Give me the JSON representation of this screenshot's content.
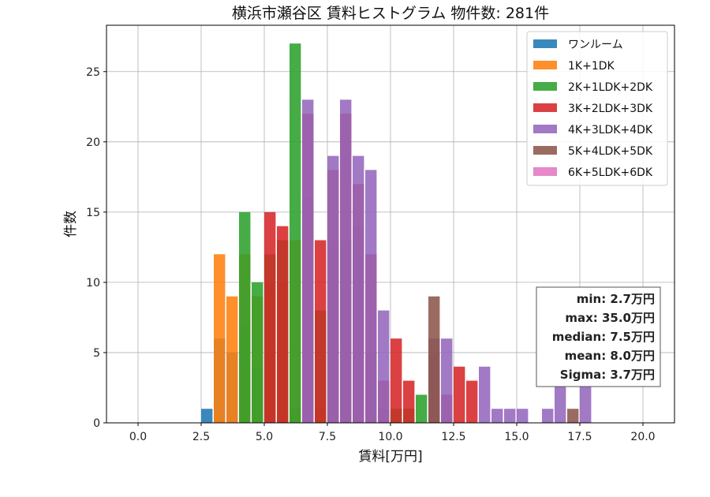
{
  "chart_data": {
    "type": "bar",
    "title": "横浜市瀬谷区 賃料ヒストグラム 物件数: 281件",
    "xlabel": "賃料[万円]",
    "ylabel": "件数",
    "xlim": [
      -1.25,
      21.25
    ],
    "ylim": [
      0,
      28.3
    ],
    "grid": true,
    "legend_position": "top-right",
    "xticks": [
      0.0,
      2.5,
      5.0,
      7.5,
      10.0,
      12.5,
      15.0,
      17.5,
      20.0
    ],
    "xtick_labels": [
      "0.0",
      "2.5",
      "5.0",
      "7.5",
      "10.0",
      "12.5",
      "15.0",
      "17.5",
      "20.0"
    ],
    "yticks": [
      0,
      5,
      10,
      15,
      20,
      25
    ],
    "ytick_labels": [
      "0",
      "5",
      "10",
      "15",
      "20",
      "25"
    ],
    "bin_width": 0.5,
    "series": [
      {
        "name": "ワンルーム",
        "color": "#1f77b4",
        "bars": [
          [
            2.5,
            1
          ],
          [
            3.0,
            6
          ],
          [
            3.5,
            5
          ],
          [
            4.0,
            7
          ],
          [
            4.5,
            4
          ],
          [
            5.0,
            1
          ],
          [
            5.5,
            2
          ],
          [
            6.0,
            1
          ],
          [
            7.5,
            2
          ],
          [
            9.0,
            1
          ]
        ]
      },
      {
        "name": "1K+1DK",
        "color": "#ff7f0e",
        "bars": [
          [
            3.0,
            12
          ],
          [
            3.5,
            9
          ],
          [
            4.0,
            12
          ],
          [
            4.5,
            9
          ],
          [
            5.0,
            10
          ],
          [
            5.5,
            10
          ],
          [
            6.0,
            13
          ],
          [
            6.5,
            6
          ],
          [
            7.0,
            1
          ],
          [
            7.5,
            7
          ],
          [
            8.0,
            7
          ],
          [
            8.5,
            8
          ],
          [
            9.0,
            5
          ]
        ]
      },
      {
        "name": "2K+1LDK+2DK",
        "color": "#2ca02c",
        "bars": [
          [
            4.0,
            15
          ],
          [
            4.5,
            10
          ],
          [
            5.0,
            12
          ],
          [
            5.5,
            13
          ],
          [
            6.0,
            27
          ],
          [
            6.5,
            16
          ],
          [
            7.0,
            8
          ],
          [
            7.5,
            13
          ],
          [
            8.0,
            13
          ],
          [
            8.5,
            14
          ],
          [
            9.0,
            5
          ],
          [
            9.5,
            1
          ],
          [
            10.0,
            1
          ],
          [
            10.5,
            1
          ],
          [
            11.0,
            2
          ]
        ]
      },
      {
        "name": "3K+2LDK+3DK",
        "color": "#d62728",
        "bars": [
          [
            5.0,
            15
          ],
          [
            5.5,
            14
          ],
          [
            6.5,
            22
          ],
          [
            7.0,
            13
          ],
          [
            7.5,
            18
          ],
          [
            8.0,
            22
          ],
          [
            8.5,
            17
          ],
          [
            9.0,
            12
          ],
          [
            9.5,
            3
          ],
          [
            10.0,
            6
          ],
          [
            10.5,
            3
          ],
          [
            11.5,
            5
          ],
          [
            12.0,
            2
          ],
          [
            12.5,
            4
          ],
          [
            13.0,
            3
          ]
        ]
      },
      {
        "name": "4K+3LDK+4DK",
        "color": "#9467bd",
        "bars": [
          [
            6.5,
            23
          ],
          [
            7.5,
            19
          ],
          [
            8.0,
            23
          ],
          [
            8.5,
            19
          ],
          [
            9.0,
            18
          ],
          [
            9.5,
            8
          ],
          [
            11.5,
            6
          ],
          [
            12.0,
            6
          ],
          [
            13.5,
            4
          ],
          [
            14.0,
            1
          ],
          [
            14.5,
            1
          ],
          [
            15.0,
            1
          ],
          [
            16.0,
            1
          ],
          [
            16.5,
            4
          ],
          [
            17.5,
            4
          ]
        ]
      },
      {
        "name": "5K+4LDK+5DK",
        "color": "#8c564b",
        "bars": [
          [
            11.5,
            9
          ],
          [
            17.0,
            1
          ]
        ]
      },
      {
        "name": "6K+5LDK+6DK",
        "color": "#e377c2",
        "bars": []
      }
    ],
    "stats": [
      "min: 2.7万円",
      "max: 35.0万円",
      "median: 7.5万円",
      "mean: 8.0万円",
      "Sigma: 3.7万円"
    ]
  }
}
